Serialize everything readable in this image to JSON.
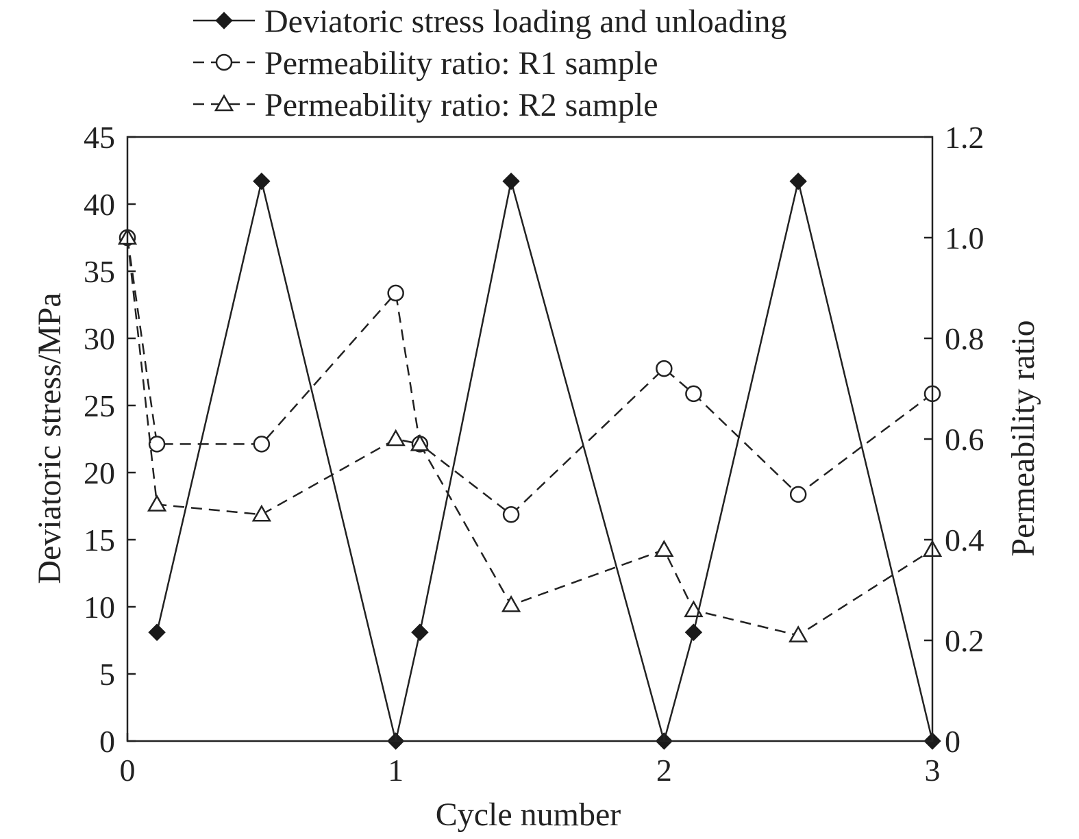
{
  "chart_data": {
    "type": "line",
    "xlabel": "Cycle number",
    "ylabel": "Deviatoric stress/MPa",
    "y2label": "Permeability ratio",
    "xlim": [
      0,
      3
    ],
    "ylim": [
      0,
      45
    ],
    "y2lim": [
      0,
      1.2
    ],
    "x_ticks": [
      "0",
      "1",
      "2",
      "3"
    ],
    "y_ticks": [
      "0",
      "5",
      "10",
      "15",
      "20",
      "25",
      "30",
      "35",
      "40",
      "45"
    ],
    "y2_ticks": [
      "0",
      "0.2",
      "0.4",
      "0.6",
      "0.8",
      "1.0",
      "1.2"
    ],
    "grid": false,
    "legend_position": "top",
    "series": [
      {
        "name": "Deviatoric stress loading and unloading",
        "axis": "left",
        "line_style": "solid",
        "marker": "filled-diamond",
        "x": [
          0.11,
          0.5,
          1.0,
          1.09,
          1.43,
          2.0,
          2.11,
          2.5,
          3.0
        ],
        "y": [
          8.1,
          41.7,
          0,
          8.1,
          41.7,
          0,
          8.1,
          41.7,
          0
        ]
      },
      {
        "name": "Permeability ratio: R1 sample",
        "axis": "right",
        "line_style": "dashed",
        "marker": "open-circle",
        "x": [
          0.0,
          0.11,
          0.5,
          1.0,
          1.09,
          1.43,
          2.0,
          2.11,
          2.5,
          3.0
        ],
        "y": [
          1.0,
          0.59,
          0.59,
          0.89,
          0.59,
          0.45,
          0.74,
          0.69,
          0.49,
          0.69
        ]
      },
      {
        "name": "Permeability ratio: R2 sample",
        "axis": "right",
        "line_style": "dashed",
        "marker": "open-triangle",
        "x": [
          0.0,
          0.11,
          0.5,
          1.0,
          1.09,
          1.43,
          2.0,
          2.11,
          2.5,
          3.0
        ],
        "y": [
          1.0,
          0.47,
          0.45,
          0.6,
          0.59,
          0.27,
          0.38,
          0.26,
          0.21,
          0.38
        ]
      }
    ]
  }
}
